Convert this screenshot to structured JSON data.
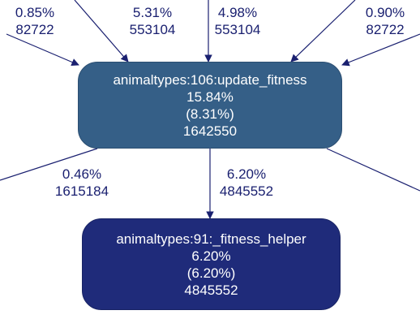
{
  "nodes": {
    "update_fitness": {
      "name": "animaltypes:106:update_fitness",
      "total_pct": "15.84%",
      "self_pct": "(8.31%)",
      "calls": "1642550",
      "fill": "#355f87"
    },
    "fitness_helper": {
      "name": "animaltypes:91:_fitness_helper",
      "total_pct": "6.20%",
      "self_pct": "(6.20%)",
      "calls": "4845552",
      "fill": "#1f2b7a"
    }
  },
  "edges": [
    {
      "pct": "0.85%",
      "calls": "82722"
    },
    {
      "pct": "5.31%",
      "calls": "553104"
    },
    {
      "pct": "4.98%",
      "calls": "553104"
    },
    {
      "pct": "0.90%",
      "calls": "82722"
    },
    {
      "pct": "0.46%",
      "calls": "1615184"
    },
    {
      "pct": "6.20%",
      "calls": "4845552"
    }
  ],
  "colors": {
    "edge": "#1a2070"
  }
}
